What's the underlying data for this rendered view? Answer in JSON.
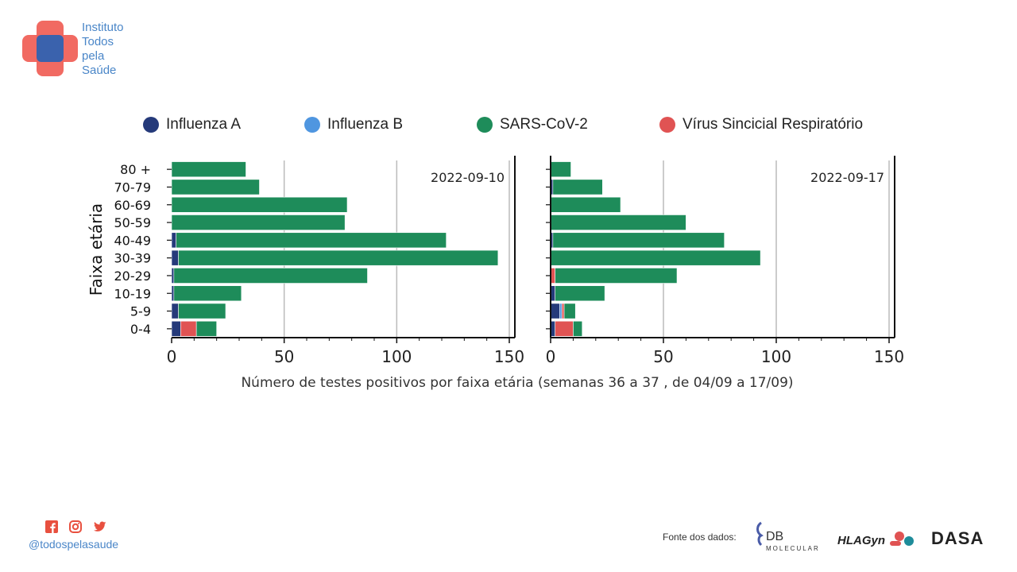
{
  "brand": {
    "name_lines": [
      "Instituto",
      "Todos",
      "pela",
      "Saúde"
    ],
    "handle": "@todospelasaude",
    "social_icons": [
      "facebook-icon",
      "instagram-icon",
      "twitter-icon"
    ],
    "colors": {
      "red": "#f04b3e",
      "blue": "#3a62ad",
      "text_blue": "#4a86c8"
    }
  },
  "footer": {
    "source_label": "Fonte dos dados:",
    "sponsors": [
      "DB",
      "MOLECULAR",
      "HLAGyn",
      "DASA"
    ]
  },
  "chart_data": {
    "type": "bar",
    "orientation": "horizontal",
    "stacked": true,
    "xlabel": "Número de testes positivos por faixa etária (semanas 36 a 37 , de 04/09 a 17/09)",
    "ylabel": "Faixa etária",
    "categories": [
      "80 +",
      "70-79",
      "60-69",
      "50-59",
      "40-49",
      "30-39",
      "20-29",
      "10-19",
      "5-9",
      "0-4"
    ],
    "xlim": [
      0,
      150
    ],
    "xticks": [
      0,
      50,
      100,
      150
    ],
    "grid": "vertical",
    "legend_position": "top",
    "series_meta": [
      {
        "name": "Influenza A",
        "color": "#253a7a"
      },
      {
        "name": "Influenza B",
        "color": "#4f96e0"
      },
      {
        "name": "SARS-CoV-2",
        "color": "#1e8c5a"
      },
      {
        "name": "Vírus Sincicial Respiratório",
        "color": "#e05353"
      }
    ],
    "panels": [
      {
        "label": "2022-09-10",
        "series": [
          {
            "name": "Influenza A",
            "values": [
              0,
              0,
              0,
              0,
              2,
              3,
              1,
              1,
              3,
              4
            ]
          },
          {
            "name": "Influenza B",
            "values": [
              0,
              0,
              0,
              0,
              0,
              0,
              0,
              0,
              0,
              0
            ]
          },
          {
            "name": "Vírus Sincicial Respiratório",
            "values": [
              0,
              0,
              0,
              0,
              0,
              0,
              0,
              0,
              0,
              7
            ]
          },
          {
            "name": "SARS-CoV-2",
            "values": [
              33,
              39,
              78,
              77,
              120,
              142,
              86,
              30,
              21,
              9
            ]
          }
        ]
      },
      {
        "label": "2022-09-17",
        "series": [
          {
            "name": "Influenza A",
            "values": [
              0,
              1,
              0,
              0,
              1,
              0,
              0,
              2,
              4,
              2
            ]
          },
          {
            "name": "Influenza B",
            "values": [
              0,
              0,
              0,
              0,
              0,
              0,
              0,
              0,
              1,
              0
            ]
          },
          {
            "name": "Vírus Sincicial Respiratório",
            "values": [
              0,
              0,
              0,
              0,
              0,
              0,
              2,
              0,
              1,
              8
            ]
          },
          {
            "name": "SARS-CoV-2",
            "values": [
              9,
              22,
              31,
              60,
              76,
              93,
              54,
              22,
              5,
              4
            ]
          }
        ]
      }
    ]
  }
}
